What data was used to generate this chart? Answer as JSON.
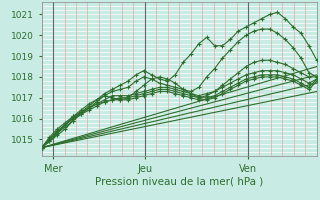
{
  "bg_color": "#c8ece4",
  "plot_bg_color": "#c8ece4",
  "grid_color_h": "#ffffff",
  "grid_color_v": "#e8a0a0",
  "line_color": "#2d6e2d",
  "marker_color": "#2d6e2d",
  "xlabel": "Pression niveau de la mer( hPa )",
  "xlabel_color": "#2d6e2d",
  "ylim": [
    1014.2,
    1021.6
  ],
  "xlim": [
    0,
    96
  ],
  "yticks": [
    1015,
    1016,
    1017,
    1018,
    1019,
    1020,
    1021
  ],
  "xtick_positions": [
    4,
    36,
    72
  ],
  "xtick_labels": [
    "Mer",
    "Jeu",
    "Ven"
  ],
  "vlines": [
    4,
    36,
    72
  ],
  "series": [
    [
      1014.6,
      1014.9,
      1015.3,
      1015.6,
      1015.9,
      1016.3,
      1016.6,
      1016.9,
      1017.2,
      1017.4,
      1017.6,
      1017.8,
      1018.1,
      1018.3,
      1018.1,
      1017.9,
      1017.8,
      1018.1,
      1018.7,
      1019.1,
      1019.6,
      1019.9,
      1019.5,
      1019.5,
      1019.8,
      1020.2,
      1020.4,
      1020.6,
      1020.8,
      1021.0,
      1021.1,
      1020.8,
      1020.4,
      1020.1,
      1019.5,
      1018.8
    ],
    [
      1014.6,
      1014.9,
      1015.2,
      1015.5,
      1015.9,
      1016.2,
      1016.5,
      1016.8,
      1017.1,
      1017.3,
      1017.4,
      1017.5,
      1017.8,
      1018.0,
      1017.9,
      1017.7,
      1017.6,
      1017.5,
      1017.4,
      1017.3,
      1017.5,
      1018.0,
      1018.4,
      1018.9,
      1019.3,
      1019.7,
      1020.0,
      1020.2,
      1020.3,
      1020.3,
      1020.1,
      1019.8,
      1019.4,
      1018.9,
      1018.2,
      1018.0
    ],
    [
      1014.6,
      1015.0,
      1015.3,
      1015.7,
      1016.0,
      1016.3,
      1016.5,
      1016.7,
      1016.9,
      1017.1,
      1017.1,
      1017.1,
      1017.2,
      1017.3,
      1017.4,
      1017.5,
      1017.5,
      1017.4,
      1017.3,
      1017.2,
      1017.1,
      1017.2,
      1017.3,
      1017.5,
      1017.7,
      1017.9,
      1018.1,
      1018.2,
      1018.3,
      1018.3,
      1018.3,
      1018.2,
      1018.1,
      1017.9,
      1017.7,
      1017.9
    ],
    [
      1014.6,
      1015.0,
      1015.4,
      1015.7,
      1016.0,
      1016.2,
      1016.4,
      1016.6,
      1016.8,
      1016.9,
      1017.0,
      1017.0,
      1017.1,
      1017.2,
      1017.3,
      1017.4,
      1017.4,
      1017.3,
      1017.2,
      1017.1,
      1017.0,
      1017.0,
      1017.1,
      1017.3,
      1017.5,
      1017.7,
      1017.9,
      1018.0,
      1018.1,
      1018.1,
      1018.1,
      1018.0,
      1017.9,
      1017.7,
      1017.5,
      1017.9
    ],
    [
      1014.6,
      1015.1,
      1015.5,
      1015.8,
      1016.1,
      1016.3,
      1016.5,
      1016.7,
      1016.8,
      1016.9,
      1016.9,
      1016.9,
      1017.0,
      1017.1,
      1017.2,
      1017.3,
      1017.3,
      1017.2,
      1017.1,
      1017.0,
      1016.9,
      1016.9,
      1017.0,
      1017.2,
      1017.4,
      1017.6,
      1017.8,
      1017.9,
      1018.0,
      1018.0,
      1018.0,
      1017.9,
      1017.8,
      1017.6,
      1017.4,
      1017.8
    ],
    [
      1014.6,
      1015.0,
      1015.4,
      1015.7,
      1016.1,
      1016.4,
      1016.7,
      1016.9,
      1017.1,
      1017.0,
      1016.9,
      1017.0,
      1017.3,
      1017.6,
      1017.9,
      1018.0,
      1017.9,
      1017.7,
      1017.4,
      1017.2,
      1017.0,
      1017.1,
      1017.3,
      1017.6,
      1017.9,
      1018.2,
      1018.5,
      1018.7,
      1018.8,
      1018.8,
      1018.7,
      1018.6,
      1018.4,
      1018.2,
      1018.0,
      1018.0
    ]
  ],
  "straight_lines": [
    [
      [
        0,
        96
      ],
      [
        1014.6,
        1017.3
      ]
    ],
    [
      [
        0,
        96
      ],
      [
        1014.6,
        1017.7
      ]
    ],
    [
      [
        0,
        96
      ],
      [
        1014.6,
        1018.1
      ]
    ],
    [
      [
        0,
        96
      ],
      [
        1014.6,
        1018.5
      ]
    ]
  ]
}
